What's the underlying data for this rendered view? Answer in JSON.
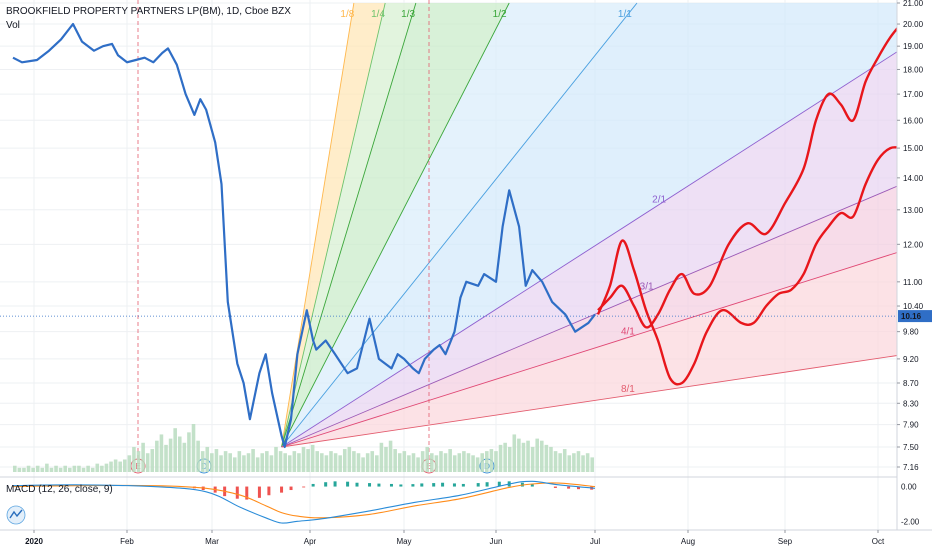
{
  "header": {
    "title": "BROOKFIELD PROPERTY PARTNERS LP(BM), 1D, Cboe BZX",
    "vol_label": "Vol",
    "macd_label": "MACD (12, 26, close, 9)"
  },
  "price_tag": "10.16",
  "colors": {
    "price_line": "#2f6ec6",
    "projection": "#e8161b",
    "macd_line": "#2a8cd8",
    "signal_line": "#ff8c1a",
    "hist_up": "#26a69a",
    "hist_down": "#ef5350",
    "volume": "#b8dcc0"
  },
  "events": [
    {
      "letter": "E",
      "month": "Feb"
    },
    {
      "letter": "D",
      "month": "Mar"
    },
    {
      "letter": "E",
      "month": "May"
    },
    {
      "letter": "D",
      "month": "Jun"
    }
  ],
  "gann_fan": {
    "origin": {
      "x": "2020-03-23",
      "y": 7.5
    },
    "lines": [
      {
        "label": "1/8",
        "end_x": "2020-04-15",
        "end_y": 21.0
      },
      {
        "label": "1/4",
        "end_x": "2020-04-25",
        "end_y": 21.0
      },
      {
        "label": "1/3",
        "end_x": "2020-05-05",
        "end_y": 21.0
      },
      {
        "label": "1/2",
        "end_x": "2020-06-05",
        "end_y": 21.0
      },
      {
        "label": "1/1",
        "end_x": "2020-07-15",
        "end_y": 21.0
      },
      {
        "label": "2/1",
        "end_x": "2020-10-10",
        "end_y": 19.0
      },
      {
        "label": "3/1",
        "end_x": "2020-10-10",
        "end_y": 13.85
      },
      {
        "label": "4/1",
        "end_x": "2020-10-10",
        "end_y": 11.85
      },
      {
        "label": "8/1",
        "end_x": "2020-10-10",
        "end_y": 9.3
      }
    ]
  },
  "chart_data": [
    {
      "type": "line",
      "title": "BROOKFIELD PROPERTY PARTNERS LP(BM), 1D, Cboe BZX",
      "x_axis": {
        "type": "date",
        "tick_labels": [
          "2020",
          "Feb",
          "Mar",
          "Apr",
          "May",
          "Jun",
          "Jul",
          "Aug",
          "Sep",
          "Oct"
        ]
      },
      "y_axis": {
        "scale": "log",
        "ticks": [
          7.16,
          7.5,
          7.9,
          8.3,
          8.7,
          9.2,
          9.8,
          10.4,
          11.0,
          12.0,
          13.0,
          14.0,
          15.0,
          16.0,
          17.0,
          18.0,
          19.0,
          20.0,
          21.0
        ],
        "ylim": [
          6.95,
          21.8
        ]
      },
      "grid": true,
      "series": [
        {
          "role": "price",
          "x": [
            "2019-12-25",
            "2019-12-28",
            "2020-01-02",
            "2020-01-06",
            "2020-01-10",
            "2020-01-14",
            "2020-01-17",
            "2020-01-21",
            "2020-01-24",
            "2020-01-27",
            "2020-01-29",
            "2020-02-01",
            "2020-02-04",
            "2020-02-07",
            "2020-02-10",
            "2020-02-13",
            "2020-02-15",
            "2020-02-18",
            "2020-02-21",
            "2020-02-24",
            "2020-02-26",
            "2020-02-28",
            "2020-03-02",
            "2020-03-04",
            "2020-03-06",
            "2020-03-09",
            "2020-03-11",
            "2020-03-13",
            "2020-03-16",
            "2020-03-18",
            "2020-03-20",
            "2020-03-23",
            "2020-03-24",
            "2020-03-26",
            "2020-03-28",
            "2020-03-31",
            "2020-04-02",
            "2020-04-03",
            "2020-04-06",
            "2020-04-09",
            "2020-04-13",
            "2020-04-16",
            "2020-04-20",
            "2020-04-23",
            "2020-04-27",
            "2020-04-29",
            "2020-05-01",
            "2020-05-04",
            "2020-05-06",
            "2020-05-08",
            "2020-05-11",
            "2020-05-13",
            "2020-05-15",
            "2020-05-18",
            "2020-05-20",
            "2020-05-22",
            "2020-05-26",
            "2020-05-28",
            "2020-06-01",
            "2020-06-03",
            "2020-06-05",
            "2020-06-08",
            "2020-06-10",
            "2020-06-12",
            "2020-06-15",
            "2020-06-18",
            "2020-06-22",
            "2020-06-25",
            "2020-06-29",
            "2020-07-01"
          ],
          "y": [
            18.5,
            18.3,
            18.4,
            18.8,
            19.3,
            20.0,
            19.2,
            18.8,
            19.0,
            19.1,
            18.6,
            18.3,
            18.4,
            18.5,
            18.3,
            18.7,
            18.9,
            18.2,
            17.0,
            16.2,
            16.8,
            16.4,
            15.2,
            13.8,
            10.5,
            9.1,
            8.7,
            8.0,
            8.9,
            9.3,
            8.5,
            7.7,
            7.5,
            8.0,
            9.3,
            10.3,
            9.6,
            9.4,
            9.6,
            9.3,
            8.9,
            9.0,
            10.1,
            9.2,
            9.0,
            9.3,
            9.2,
            9.0,
            8.9,
            9.2,
            9.4,
            9.5,
            9.3,
            9.8,
            10.6,
            11.0,
            10.9,
            11.2,
            11.0,
            12.5,
            13.6,
            12.5,
            10.9,
            11.3,
            11.0,
            10.5,
            10.2,
            9.8,
            10.0,
            10.2
          ]
        },
        {
          "role": "projection",
          "x": [
            "2020-07-02",
            "2020-07-06",
            "2020-07-10",
            "2020-07-14",
            "2020-07-18",
            "2020-07-22",
            "2020-07-26",
            "2020-07-30",
            "2020-08-03",
            "2020-08-07",
            "2020-08-12",
            "2020-08-18",
            "2020-08-22",
            "2020-08-26",
            "2020-08-30",
            "2020-09-03",
            "2020-09-07",
            "2020-09-11",
            "2020-09-15",
            "2020-09-19",
            "2020-09-23",
            "2020-09-27",
            "2020-10-01",
            "2020-10-05",
            "2020-10-09"
          ],
          "y": [
            10.2,
            10.9,
            12.1,
            11.3,
            10.3,
            9.6,
            8.8,
            8.7,
            9.1,
            9.8,
            10.3,
            10.0,
            10.0,
            10.4,
            10.7,
            10.8,
            11.2,
            12.0,
            12.5,
            12.9,
            12.8,
            13.8,
            14.6,
            15.0,
            15.0
          ]
        },
        {
          "role": "projection",
          "x": [
            "2020-07-02",
            "2020-07-06",
            "2020-07-10",
            "2020-07-14",
            "2020-07-18",
            "2020-07-22",
            "2020-07-26",
            "2020-07-30",
            "2020-08-03",
            "2020-08-08",
            "2020-08-14",
            "2020-08-20",
            "2020-08-26",
            "2020-09-01",
            "2020-09-07",
            "2020-09-11",
            "2020-09-15",
            "2020-09-19",
            "2020-09-23",
            "2020-09-27",
            "2020-10-01",
            "2020-10-05",
            "2020-10-09"
          ],
          "y": [
            10.3,
            10.6,
            10.9,
            10.4,
            9.9,
            10.2,
            10.8,
            11.2,
            10.7,
            10.9,
            12.0,
            12.6,
            12.3,
            13.2,
            14.3,
            16.0,
            17.0,
            16.6,
            16.0,
            17.5,
            18.5,
            19.4,
            20.1
          ]
        }
      ]
    },
    {
      "type": "bar",
      "title": "Vol",
      "x_range": [
        "2019-12-25",
        "2020-07-01"
      ],
      "values": [
        3,
        2,
        2,
        3,
        2,
        3,
        2,
        4,
        2,
        3,
        2,
        3,
        2,
        3,
        3,
        2,
        3,
        2,
        4,
        3,
        4,
        5,
        6,
        5,
        6,
        8,
        12,
        10,
        14,
        9,
        11,
        15,
        18,
        13,
        16,
        21,
        17,
        14,
        19,
        23,
        15,
        10,
        12,
        9,
        11,
        8,
        10,
        9,
        7,
        10,
        8,
        9,
        11,
        7,
        9,
        10,
        8,
        12,
        10,
        9,
        8,
        10,
        9,
        12,
        11,
        13,
        10,
        9,
        8,
        10,
        9,
        8,
        11,
        12,
        10,
        9,
        7,
        9,
        10,
        8,
        14,
        12,
        15,
        11,
        9,
        10,
        8,
        9,
        7,
        10,
        12,
        9,
        8,
        10,
        9,
        11,
        8,
        9,
        10,
        9,
        8,
        7,
        9,
        10,
        11,
        10,
        13,
        14,
        12,
        18,
        16,
        14,
        15,
        12,
        16,
        15,
        13,
        12,
        10,
        9,
        11,
        8,
        9,
        10,
        8,
        9,
        7
      ]
    },
    {
      "type": "line",
      "title": "MACD (12, 26, close, 9)",
      "x_range": [
        "2019-12-25",
        "2020-07-01"
      ],
      "y_axis": {
        "ticks": [
          0.0,
          -2.0
        ],
        "ylim": [
          -2.5,
          0.55
        ]
      },
      "series": [
        {
          "name": "MACD",
          "x": [
            "2019-12-25",
            "2020-01-15",
            "2020-02-10",
            "2020-02-28",
            "2020-03-10",
            "2020-03-18",
            "2020-03-23",
            "2020-03-28",
            "2020-04-05",
            "2020-04-20",
            "2020-05-05",
            "2020-05-20",
            "2020-06-05",
            "2020-06-12",
            "2020-06-20",
            "2020-07-01"
          ],
          "y": [
            0.05,
            0.1,
            0.0,
            -0.3,
            -1.2,
            -1.8,
            -2.1,
            -2.0,
            -1.85,
            -1.4,
            -0.9,
            -0.5,
            0.15,
            0.3,
            0.1,
            -0.1
          ]
        },
        {
          "name": "Signal",
          "x": [
            "2019-12-25",
            "2020-01-15",
            "2020-02-10",
            "2020-02-28",
            "2020-03-10",
            "2020-03-18",
            "2020-03-23",
            "2020-03-28",
            "2020-04-05",
            "2020-04-20",
            "2020-05-05",
            "2020-05-20",
            "2020-06-05",
            "2020-06-12",
            "2020-06-20",
            "2020-07-01"
          ],
          "y": [
            0.0,
            0.05,
            0.05,
            -0.1,
            -0.5,
            -1.1,
            -1.5,
            -1.7,
            -1.8,
            -1.6,
            -1.1,
            -0.7,
            -0.05,
            0.15,
            0.2,
            0.0
          ]
        },
        {
          "name": "Histogram",
          "x": [
            "2020-02-24",
            "2020-02-27",
            "2020-03-02",
            "2020-03-05",
            "2020-03-09",
            "2020-03-12",
            "2020-03-16",
            "2020-03-19",
            "2020-03-23",
            "2020-03-26",
            "2020-03-30",
            "2020-04-02",
            "2020-04-06",
            "2020-04-09",
            "2020-04-13",
            "2020-04-16",
            "2020-04-20",
            "2020-04-23",
            "2020-04-27",
            "2020-04-30",
            "2020-05-04",
            "2020-05-07",
            "2020-05-11",
            "2020-05-14",
            "2020-05-18",
            "2020-05-21",
            "2020-05-26",
            "2020-05-29",
            "2020-06-02",
            "2020-06-05",
            "2020-06-09",
            "2020-06-12",
            "2020-06-16",
            "2020-06-19",
            "2020-06-23",
            "2020-06-26",
            "2020-06-30"
          ],
          "y": [
            -0.1,
            -0.2,
            -0.35,
            -0.55,
            -0.7,
            -0.75,
            -0.65,
            -0.5,
            -0.35,
            -0.2,
            -0.05,
            0.15,
            0.25,
            0.3,
            0.28,
            0.22,
            0.2,
            0.17,
            0.15,
            0.12,
            0.14,
            0.18,
            0.2,
            0.22,
            0.18,
            0.15,
            0.2,
            0.25,
            0.28,
            0.3,
            0.22,
            0.12,
            0.0,
            -0.08,
            -0.12,
            -0.15,
            -0.18
          ]
        }
      ]
    }
  ]
}
